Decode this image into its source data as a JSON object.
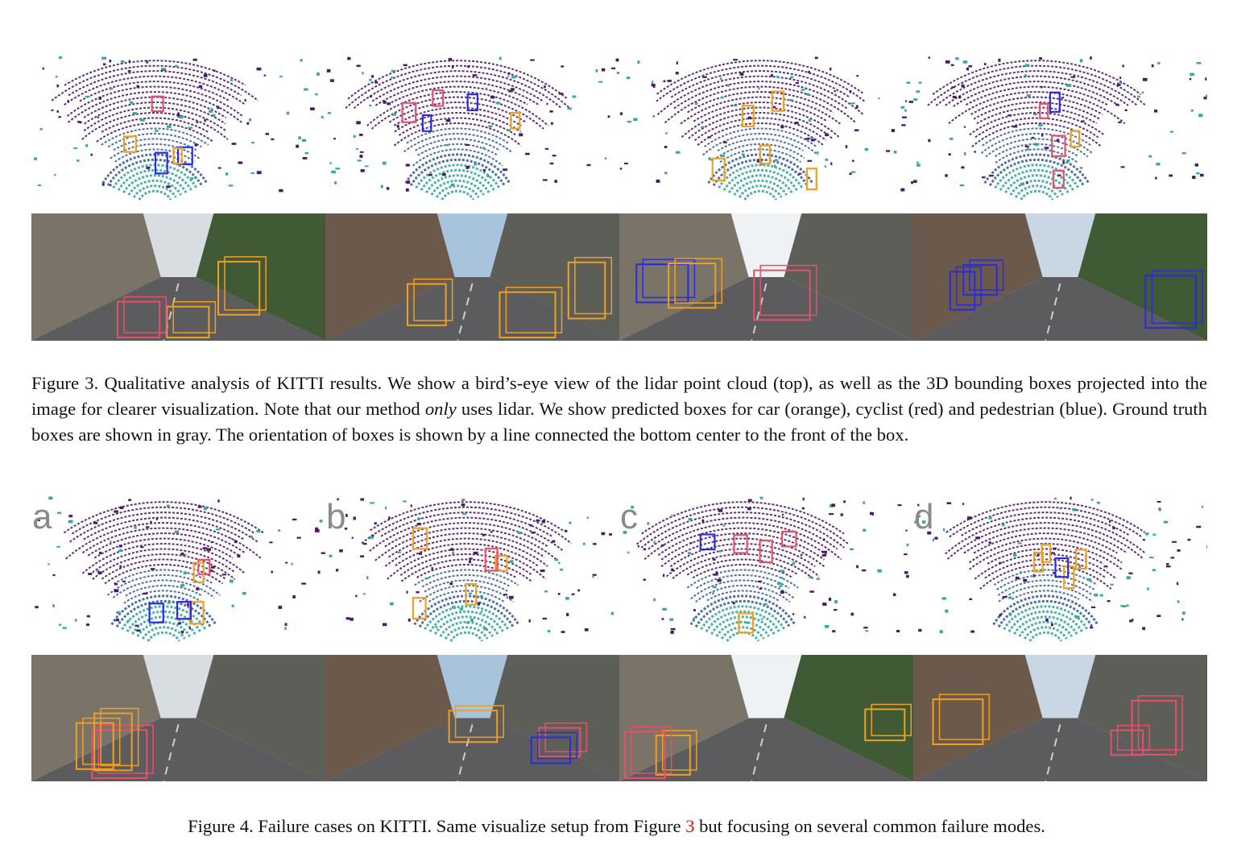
{
  "figure3": {
    "caption_parts": [
      "Figure 3. Qualitative analysis of KITTI results. We show a bird’s-eye view of the lidar point cloud (top), as well as the 3D bounding boxes projected into the image for clearer visualization. Note that our method ",
      "only",
      " uses lidar. We show predicted boxes for car (orange), cyclist (red) and pedestrian (blue). Ground truth boxes are shown in gray. The orientation of boxes is shown by a line connected the bottom center to the front of the box."
    ]
  },
  "figure4": {
    "panel_labels": [
      "a",
      "b",
      "c",
      "d"
    ],
    "caption_before": "Figure 4. Failure cases on KITTI. Same visualize setup from Figure ",
    "caption_ref": "3",
    "caption_after": " but focusing on several common failure modes."
  },
  "colors": {
    "car": "#f0a020",
    "cyclist": "#e8506a",
    "pedestrian": "#2a2ae0",
    "lidar_near": "#3aa7a0",
    "lidar_mid": "#3b5e9a",
    "lidar_far": "#4a1a6a"
  }
}
